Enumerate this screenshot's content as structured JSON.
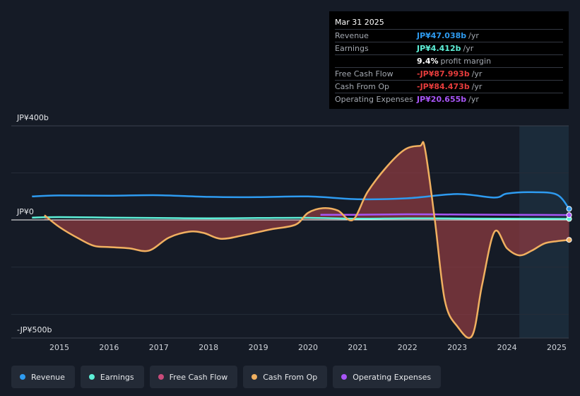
{
  "tooltip": {
    "date": "Mar 31 2025",
    "rows": [
      {
        "label": "Revenue",
        "value": "JP¥47.038b",
        "unit": "/yr",
        "color": "#2e9bf0"
      },
      {
        "label": "Earnings",
        "value": "JP¥4.412b",
        "unit": "/yr",
        "color": "#5ef0d8"
      },
      {
        "label": "",
        "value": "9.4%",
        "unit": "profit margin",
        "color": "#ffffff"
      },
      {
        "label": "Free Cash Flow",
        "value": "-JP¥87.993b",
        "unit": "/yr",
        "color": "#e63c3c"
      },
      {
        "label": "Cash From Op",
        "value": "-JP¥84.473b",
        "unit": "/yr",
        "color": "#e63c3c"
      },
      {
        "label": "Operating Expenses",
        "value": "JP¥20.655b",
        "unit": "/yr",
        "color": "#a855f7"
      }
    ]
  },
  "legend": [
    {
      "label": "Revenue",
      "color": "#2e9bf0"
    },
    {
      "label": "Earnings",
      "color": "#5ef0d8"
    },
    {
      "label": "Free Cash Flow",
      "color": "#c84b7a"
    },
    {
      "label": "Cash From Op",
      "color": "#f0b060"
    },
    {
      "label": "Operating Expenses",
      "color": "#a855f7"
    }
  ],
  "chart_data": {
    "type": "area",
    "x_unit": "year",
    "ylim": [
      -500,
      400
    ],
    "y_tick_labels": [
      "JP¥400b",
      "JP¥0",
      "-JP¥500b"
    ],
    "y_tick_values": [
      400,
      0,
      -500
    ],
    "x_tick_labels": [
      "2015",
      "2016",
      "2017",
      "2018",
      "2019",
      "2020",
      "2021",
      "2022",
      "2023",
      "2024",
      "2025"
    ],
    "x_tick_values": [
      2015,
      2016,
      2017,
      2018,
      2019,
      2020,
      2021,
      2022,
      2023,
      2024,
      2025
    ],
    "xlim": [
      2014.0,
      2025.25
    ],
    "forecast_start": 2024.25,
    "series": [
      {
        "name": "Revenue",
        "color": "#2e9bf0",
        "x": [
          2014.45,
          2015.0,
          2016.0,
          2017.0,
          2018.0,
          2019.0,
          2020.0,
          2021.0,
          2022.0,
          2023.0,
          2023.75,
          2024.0,
          2024.5,
          2025.0,
          2025.25
        ],
        "values": [
          100,
          104,
          103,
          105,
          98,
          97,
          100,
          88,
          92,
          110,
          95,
          112,
          118,
          108,
          47
        ]
      },
      {
        "name": "Earnings",
        "color": "#5ef0d8",
        "x": [
          2014.45,
          2015.0,
          2016.0,
          2017.0,
          2018.0,
          2019.0,
          2020.0,
          2021.0,
          2022.0,
          2023.0,
          2024.0,
          2025.25
        ],
        "values": [
          10,
          12,
          10,
          8,
          7,
          8,
          9,
          5,
          7,
          6,
          5,
          4.4
        ]
      },
      {
        "name": "Cash From Op",
        "color": "#f0b060",
        "x": [
          2014.7,
          2015.0,
          2015.4,
          2015.7,
          2016.0,
          2016.4,
          2016.8,
          2017.2,
          2017.6,
          2017.9,
          2018.25,
          2018.7,
          2019.25,
          2019.75,
          2020.0,
          2020.3,
          2020.6,
          2020.9,
          2021.2,
          2021.6,
          2021.95,
          2022.25,
          2022.35,
          2022.55,
          2022.75,
          2023.0,
          2023.3,
          2023.5,
          2023.75,
          2024.0,
          2024.25,
          2024.5,
          2024.75,
          2025.0,
          2025.25
        ],
        "values": [
          20,
          -30,
          -80,
          -110,
          -115,
          -120,
          -130,
          -75,
          -50,
          -55,
          -80,
          -65,
          -40,
          -20,
          30,
          50,
          40,
          0,
          120,
          230,
          300,
          315,
          305,
          0,
          -340,
          -450,
          -490,
          -275,
          -50,
          -120,
          -150,
          -130,
          -100,
          -90,
          -84.5
        ]
      },
      {
        "name": "Free Cash Flow",
        "color": "#c84b7a",
        "x": [
          2014.7,
          2015.0,
          2015.4,
          2015.7,
          2016.0,
          2016.4,
          2016.8,
          2017.2,
          2017.6,
          2017.9,
          2018.25,
          2018.7,
          2019.25,
          2019.75,
          2020.0,
          2020.3,
          2020.6,
          2020.9,
          2021.2,
          2021.6,
          2021.95,
          2022.25,
          2022.35,
          2022.55,
          2022.75,
          2023.0,
          2023.3,
          2023.5,
          2023.75,
          2024.0,
          2024.25,
          2024.5,
          2024.75,
          2025.0,
          2025.25
        ],
        "values": [
          15,
          -34,
          -84,
          -114,
          -119,
          -124,
          -134,
          -79,
          -54,
          -59,
          -84,
          -69,
          -44,
          -24,
          26,
          46,
          36,
          -4,
          116,
          226,
          296,
          311,
          301,
          -4,
          -344,
          -454,
          -494,
          -279,
          -54,
          -124,
          -154,
          -134,
          -104,
          -94,
          -88
        ]
      },
      {
        "name": "Operating Expenses",
        "color": "#a855f7",
        "x": [
          2020.25,
          2021.0,
          2022.0,
          2023.0,
          2024.0,
          2025.25
        ],
        "values": [
          22,
          22,
          24,
          23,
          22,
          20.7
        ]
      }
    ]
  }
}
